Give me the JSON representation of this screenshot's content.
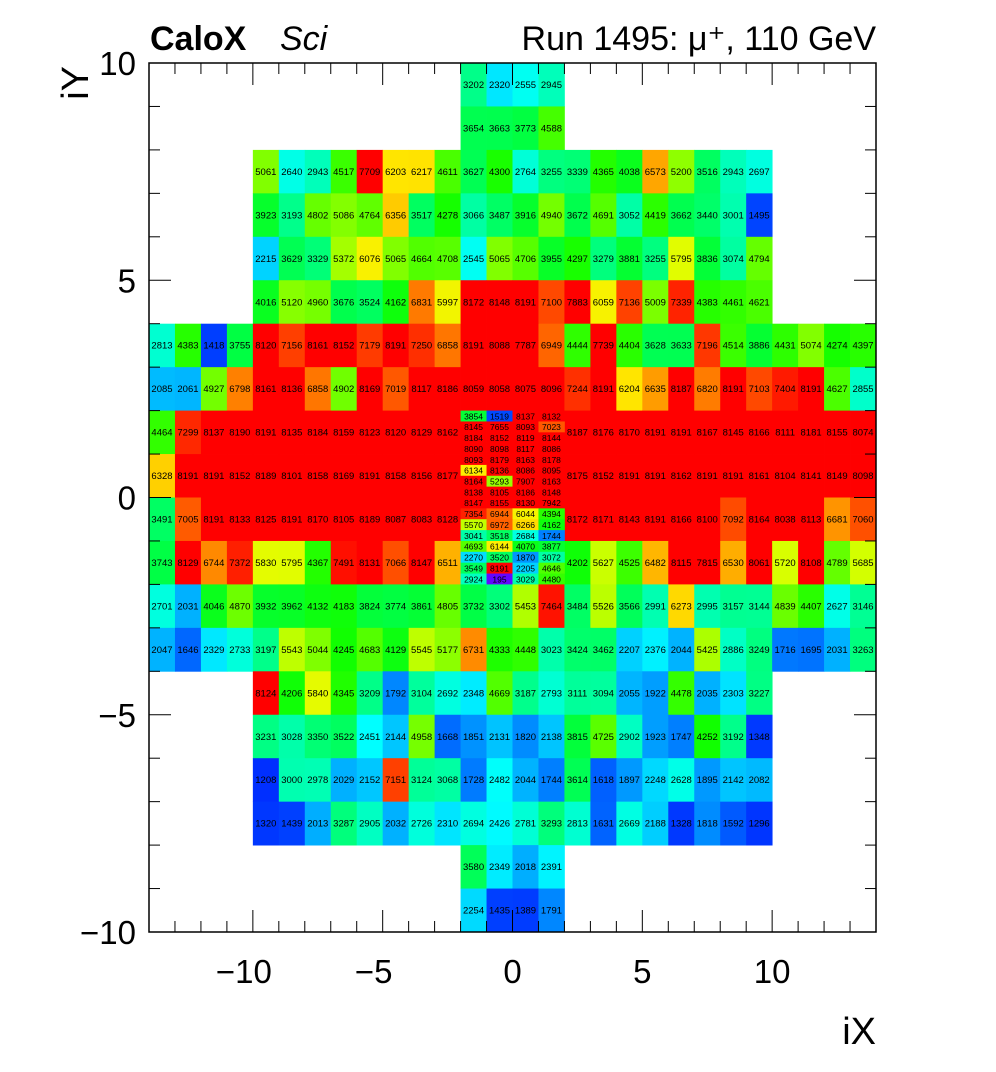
{
  "chart_data": {
    "type": "heatmap",
    "title_left_bold": "CaloX",
    "title_left_italic": "Sci",
    "title_right": "Run 1495:  μ⁺, 110 GeV",
    "xlabel": "iX",
    "ylabel": "iY",
    "xlim": [
      -14,
      14
    ],
    "ylim": [
      -10,
      10
    ],
    "x_ticks": [
      "-10",
      "-5",
      "0",
      "5",
      "10"
    ],
    "x_tick_values": [
      -10,
      -5,
      0,
      5,
      10
    ],
    "y_ticks": [
      "10",
      "5",
      "0",
      "-5",
      "-10"
    ],
    "y_tick_values": [
      10,
      5,
      0,
      -5,
      -10
    ],
    "palette": [
      [
        0,
        "#7a00ff"
      ],
      [
        1000,
        "#0020ff"
      ],
      [
        1500,
        "#0044ff"
      ],
      [
        1750,
        "#0080ff"
      ],
      [
        2050,
        "#00b4ff"
      ],
      [
        2450,
        "#00ffff"
      ],
      [
        2850,
        "#00ffcc"
      ],
      [
        3250,
        "#00ff80"
      ],
      [
        3750,
        "#00ff44"
      ],
      [
        4250,
        "#11ff00"
      ],
      [
        4800,
        "#66ff00"
      ],
      [
        5300,
        "#99ff00"
      ],
      [
        5750,
        "#ddff00"
      ],
      [
        6150,
        "#ffee00"
      ],
      [
        6550,
        "#ffaa00"
      ],
      [
        6850,
        "#ff7700"
      ],
      [
        7220,
        "#ff3300"
      ],
      [
        7600,
        "#ff0000"
      ]
    ],
    "rows": [
      {
        "y": [
          9,
          10
        ],
        "x0": -2,
        "w": 1,
        "v": [
          3202,
          2320,
          2555,
          2945
        ]
      },
      {
        "y": [
          8,
          9
        ],
        "x0": -2,
        "w": 1,
        "v": [
          3654,
          3663,
          3773,
          4588
        ]
      },
      {
        "y": [
          7,
          8
        ],
        "x0": -10,
        "w": 1,
        "v": [
          5061,
          2640,
          2943,
          4517,
          7709,
          6203,
          6217,
          4611,
          3627,
          4300,
          2764,
          3255,
          3339,
          4365,
          4038,
          6573,
          5200,
          3516,
          2943,
          2697
        ]
      },
      {
        "y": [
          6,
          7
        ],
        "x0": -10,
        "w": 1,
        "v": [
          3923,
          3193,
          4802,
          5086,
          4764,
          6356,
          3517,
          4278,
          3066,
          3487,
          3916,
          4940,
          3672,
          4691,
          3052,
          4419,
          3662,
          3440,
          3001,
          1495
        ]
      },
      {
        "y": [
          5,
          6
        ],
        "x0": -10,
        "w": 1,
        "v": [
          2215,
          3629,
          3329,
          5372,
          6076,
          5065,
          4664,
          4708,
          2545,
          5065,
          4706,
          3955,
          4297,
          3279,
          3881,
          3255,
          5795,
          3836,
          3074,
          4794
        ]
      },
      {
        "y": [
          4,
          5
        ],
        "x0": -10,
        "w": 1,
        "v": [
          4016,
          5120,
          4960,
          3676,
          3524,
          4162,
          6831,
          5997,
          8172,
          8148,
          8191,
          7100,
          7883,
          6059,
          7136,
          5009,
          7339,
          4383,
          4461,
          4621
        ]
      },
      {
        "y": [
          3,
          4
        ],
        "x0": -14,
        "w": 1,
        "v": [
          2813,
          4383,
          1418,
          3755,
          8120,
          7156,
          8161,
          8152,
          7179,
          8191,
          7250,
          6858,
          8191,
          8088,
          7787,
          6949,
          4444,
          7739,
          4404,
          3628,
          3633,
          7196,
          4514,
          3886,
          4431,
          5074,
          4274,
          4397
        ]
      },
      {
        "y": [
          2,
          3
        ],
        "x0": -14,
        "w": 1,
        "v": [
          2085,
          2061,
          4927,
          6798,
          8161,
          8136,
          6858,
          4902,
          8169,
          7019,
          8117,
          8186,
          8059,
          8058,
          8075,
          8096,
          7244,
          8191,
          6204,
          6635,
          8187,
          6820,
          8191,
          7103,
          7404,
          8191,
          4627,
          2855
        ]
      },
      {
        "y": [
          1,
          2
        ],
        "x0": -14,
        "w": 1,
        "v": [
          4464,
          7299,
          8137,
          8190,
          8191,
          8135,
          8184,
          8159,
          8123,
          8120,
          8129,
          8162
        ]
      },
      {
        "y": [
          1,
          2
        ],
        "x0": 2,
        "w": 1,
        "v": [
          8187,
          8176,
          8170,
          8191,
          8191,
          8167,
          8145,
          8166,
          8111,
          8181,
          8155,
          8074
        ]
      },
      {
        "y": [
          0,
          1
        ],
        "x0": -14,
        "w": 1,
        "v": [
          6328,
          8191,
          8191,
          8152,
          8189,
          8101,
          8158,
          8169,
          8191,
          8158,
          8156,
          8177
        ]
      },
      {
        "y": [
          0,
          1
        ],
        "x0": 2,
        "w": 1,
        "v": [
          8175,
          8152,
          8191,
          8191,
          8162,
          8191,
          8191,
          8161,
          8104,
          8141,
          8149,
          8098
        ]
      },
      {
        "y": [
          -1,
          0
        ],
        "x0": -14,
        "w": 1,
        "v": [
          3491,
          7005,
          8191,
          8133,
          8125,
          8191,
          8170,
          8105,
          8189,
          8087,
          8083,
          8128
        ]
      },
      {
        "y": [
          -1,
          0
        ],
        "x0": 2,
        "w": 1,
        "v": [
          8172,
          8171,
          8143,
          8191,
          8166,
          8100,
          7092,
          8164,
          8038,
          8113,
          6681,
          7060
        ]
      },
      {
        "y": [
          -2,
          -1
        ],
        "x0": -14,
        "w": 1,
        "v": [
          3743,
          8129,
          6744,
          7372,
          5830,
          5795,
          4367,
          7491,
          8131,
          7066,
          8147,
          6511
        ]
      },
      {
        "y": [
          -2,
          -1
        ],
        "x0": 2,
        "w": 1,
        "v": [
          4202,
          5627,
          4525,
          6482,
          8115,
          7815,
          6530,
          8061,
          5720,
          8108,
          4789,
          5685
        ]
      },
      {
        "y": [
          1.75,
          2
        ],
        "x0": -2,
        "w": 1,
        "sub": true,
        "v": [
          3854,
          1519,
          8137,
          8132
        ]
      },
      {
        "y": [
          1.5,
          1.75
        ],
        "x0": -2,
        "w": 1,
        "sub": true,
        "v": [
          8145,
          7655,
          8093,
          7023
        ]
      },
      {
        "y": [
          1.25,
          1.5
        ],
        "x0": -2,
        "w": 1,
        "sub": true,
        "v": [
          8184,
          8152,
          8119,
          8144
        ]
      },
      {
        "y": [
          1,
          1.25
        ],
        "x0": -2,
        "w": 1,
        "sub": true,
        "v": [
          8090,
          8098,
          8117,
          8086
        ]
      },
      {
        "y": [
          0.75,
          1
        ],
        "x0": -2,
        "w": 1,
        "sub": true,
        "v": [
          8093,
          8179,
          8163,
          8178
        ]
      },
      {
        "y": [
          0.5,
          0.75
        ],
        "x0": -2,
        "w": 1,
        "sub": true,
        "v": [
          6134,
          8136,
          8086,
          8095
        ]
      },
      {
        "y": [
          0.25,
          0.5
        ],
        "x0": -2,
        "w": 1,
        "sub": true,
        "v": [
          8164,
          5293,
          7907,
          8163
        ]
      },
      {
        "y": [
          0,
          0.25
        ],
        "x0": -2,
        "w": 1,
        "sub": true,
        "v": [
          8138,
          8105,
          8186,
          8148
        ]
      },
      {
        "y": [
          -0.25,
          0
        ],
        "x0": -2,
        "w": 1,
        "sub": true,
        "v": [
          8147,
          8155,
          8130,
          7942
        ]
      },
      {
        "y": [
          -0.5,
          -0.25
        ],
        "x0": -2,
        "w": 1,
        "sub": true,
        "v": [
          7354,
          6944,
          6044,
          4394
        ]
      },
      {
        "y": [
          -0.75,
          -0.5
        ],
        "x0": -2,
        "w": 1,
        "sub": true,
        "v": [
          5570,
          6972,
          6266,
          4162
        ]
      },
      {
        "y": [
          -1,
          -0.75
        ],
        "x0": -2,
        "w": 1,
        "sub": true,
        "v": [
          3041,
          3518,
          2684,
          1744
        ]
      },
      {
        "y": [
          -1.25,
          -1
        ],
        "x0": -2,
        "w": 1,
        "sub": true,
        "v": [
          4693,
          6144,
          4070,
          3877
        ]
      },
      {
        "y": [
          -1.5,
          -1.25
        ],
        "x0": -2,
        "w": 1,
        "sub": true,
        "v": [
          2270,
          3520,
          1870,
          3072
        ]
      },
      {
        "y": [
          -1.75,
          -1.5
        ],
        "x0": -2,
        "w": 1,
        "sub": true,
        "v": [
          3549,
          8191,
          2205,
          4646
        ]
      },
      {
        "y": [
          -2,
          -1.75
        ],
        "x0": -2,
        "w": 1,
        "sub": true,
        "v": [
          2924,
          195,
          3029,
          4480
        ]
      },
      {
        "y": [
          -3,
          -2
        ],
        "x0": -14,
        "w": 1,
        "v": [
          2701,
          2031,
          4046,
          4870,
          3932,
          3962,
          4132,
          4183,
          3824,
          3774,
          3861,
          4805,
          3732,
          3302,
          5453,
          7464,
          3484,
          5526,
          3566,
          2991,
          6273,
          2995,
          3157,
          3144,
          4839,
          4407,
          2627,
          3146
        ]
      },
      {
        "y": [
          -4,
          -3
        ],
        "x0": -14,
        "w": 1,
        "v": [
          2047,
          1646,
          2329,
          2733,
          3197,
          5543,
          5044,
          4245,
          4683,
          4129,
          5545,
          5177,
          6731,
          4333,
          4448,
          3023,
          3424,
          3462,
          2207,
          2376,
          2044,
          5425,
          2886,
          3249,
          1716,
          1695,
          2031,
          3263
        ]
      },
      {
        "y": [
          -5,
          -4
        ],
        "x0": -10,
        "w": 1,
        "v": [
          8124,
          4206,
          5840,
          4345,
          3209,
          1792,
          3104,
          2692,
          2348,
          4669,
          3187,
          2793,
          3111,
          3094,
          2055,
          1922,
          4478,
          2035,
          2303,
          3227
        ]
      },
      {
        "y": [
          -6,
          -5
        ],
        "x0": -10,
        "w": 1,
        "v": [
          3231,
          3028,
          3350,
          3522,
          2451,
          2144,
          4958,
          1668,
          1851,
          2131,
          1820,
          2138,
          3815,
          4725,
          2902,
          1923,
          1747,
          4252,
          3192,
          1348
        ]
      },
      {
        "y": [
          -7,
          -6
        ],
        "x0": -10,
        "w": 1,
        "v": [
          1208,
          3000,
          2978,
          2029,
          2152,
          7151,
          3124,
          3068,
          1728,
          2482,
          2044,
          1744,
          3614,
          1618,
          1897,
          2248,
          2628,
          1895,
          2142,
          2082
        ]
      },
      {
        "y": [
          -8,
          -7
        ],
        "x0": -10,
        "w": 1,
        "v": [
          1320,
          1439,
          2013,
          3287,
          2905,
          2032,
          2726,
          2310,
          2694,
          2426,
          2781,
          3293,
          2813,
          1631,
          2669,
          2188,
          1328,
          1818,
          1592,
          1296
        ]
      },
      {
        "y": [
          -9,
          -8
        ],
        "x0": -2,
        "w": 1,
        "v": [
          3580,
          2349,
          2018,
          2391
        ]
      },
      {
        "y": [
          -10,
          -9
        ],
        "x0": -2,
        "w": 1,
        "v": [
          2254,
          1435,
          1389,
          1791
        ]
      }
    ]
  }
}
